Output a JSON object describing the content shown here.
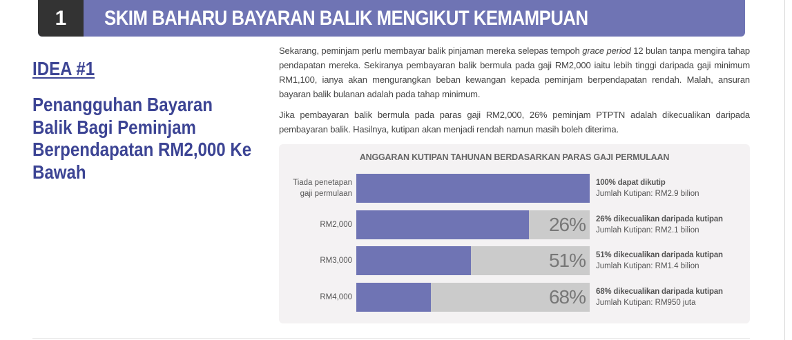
{
  "header": {
    "number": "1",
    "title": "SKIM BAHARU BAYARAN BALIK MENGIKUT KEMAMPUAN"
  },
  "idea": {
    "label": "IDEA #1",
    "title": "Penangguhan Bayaran Balik Bagi Peminjam Berpendapatan RM2,000 Ke Bawah"
  },
  "body": {
    "para1_before": "Sekarang, peminjam perlu membayar balik pinjaman mereka selepas tempoh ",
    "para1_em": "grace period",
    "para1_after": " 12 bulan tanpa mengira tahap pendapatan mereka. Sekiranya pembayaran balik bermula pada gaji RM2,000 iaitu lebih tinggi daripada gaji minimum RM1,100, ianya akan mengurangkan beban kewangan kepada peminjam berpendapatan rendah. Malah, ansuran bayaran balik bulanan adalah pada tahap minimum.",
    "para2": "Jika pembayaran balik bermula pada paras gaji RM2,000, 26% peminjam PTPTN adalah dikecualikan daripada pembayaran balik. Hasilnya, kutipan akan menjadi rendah namun masih boleh diterima."
  },
  "colors": {
    "accent": "#6f74b4",
    "number_box": "#333333",
    "heading_text": "#3c4494",
    "bar_excluded": "#cbcbcb",
    "card_bg": "#f4f2f3"
  },
  "chart_data": {
    "type": "bar",
    "orientation": "horizontal",
    "stacked": true,
    "title": "ANGGARAN KUTIPAN TAHUNAN BERDASARKAN PARAS GAJI PERMULAAN",
    "categories": [
      "Tiada penetapan gaji permulaan",
      "RM2,000",
      "RM3,000",
      "RM4,000"
    ],
    "series": [
      {
        "name": "Dapat dikutip (%)",
        "color": "#6f74b4",
        "values": [
          100,
          74,
          49,
          32
        ]
      },
      {
        "name": "Dikecualikan (%)",
        "color": "#cbcbcb",
        "values": [
          0,
          26,
          51,
          68
        ]
      }
    ],
    "xlim": [
      0,
      100
    ],
    "grid": false,
    "legend": "none",
    "rows": [
      {
        "label_line1": "Tiada penetapan",
        "label_line2": "gaji permulaan",
        "collect_pct": 100,
        "excluded_pct_label": "",
        "desc": "100% dapat dikutip",
        "total": "Jumlah Kutipan: RM2.9 bilion"
      },
      {
        "label_line1": "RM2,000",
        "label_line2": "",
        "collect_pct": 74,
        "excluded_pct_label": "26%",
        "desc": "26% dikecualikan daripada kutipan",
        "total": "Jumlah Kutipan: RM2.1 bilion"
      },
      {
        "label_line1": "RM3,000",
        "label_line2": "",
        "collect_pct": 49,
        "excluded_pct_label": "51%",
        "desc": "51% dikecualikan daripada kutipan",
        "total": "Jumlah Kutipan: RM1.4 bilion"
      },
      {
        "label_line1": "RM4,000",
        "label_line2": "",
        "collect_pct": 32,
        "excluded_pct_label": "68%",
        "desc": "68% dikecualikan daripada kutipan",
        "total": "Jumlah Kutipan: RM950 juta"
      }
    ]
  }
}
